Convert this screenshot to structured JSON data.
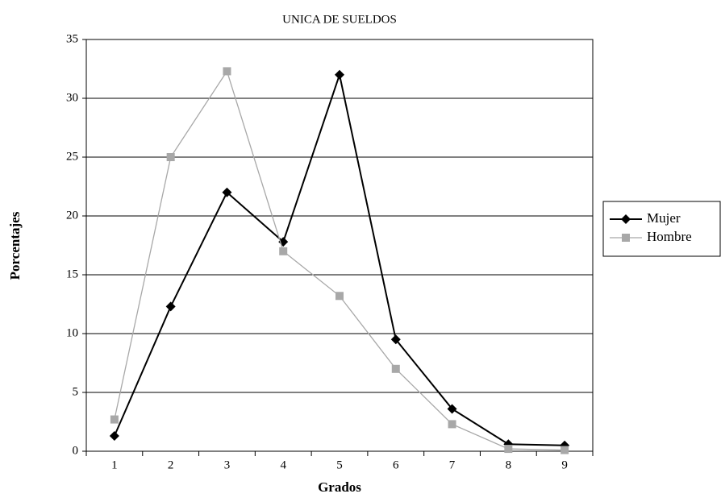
{
  "chart_data": {
    "type": "line",
    "title": "UNICA DE SUELDOS",
    "x_label": "Grados",
    "y_label": "Porcentajes",
    "categories": [
      1,
      2,
      3,
      4,
      5,
      6,
      7,
      8,
      9
    ],
    "series": [
      {
        "name": "Mujer",
        "color": "#000000",
        "marker": "diamond",
        "values": [
          1.3,
          12.3,
          22,
          17.8,
          32,
          9.5,
          3.6,
          0.6,
          0.5
        ]
      },
      {
        "name": "Hombre",
        "color": "#a8a8a8",
        "marker": "square",
        "values": [
          2.7,
          25,
          32.3,
          17,
          13.2,
          7,
          2.3,
          0.2,
          0.1
        ]
      }
    ],
    "ylim": [
      0,
      35
    ],
    "yticks": [
      0,
      5,
      10,
      15,
      20,
      25,
      30,
      35
    ],
    "grid": true,
    "legend": "right"
  }
}
